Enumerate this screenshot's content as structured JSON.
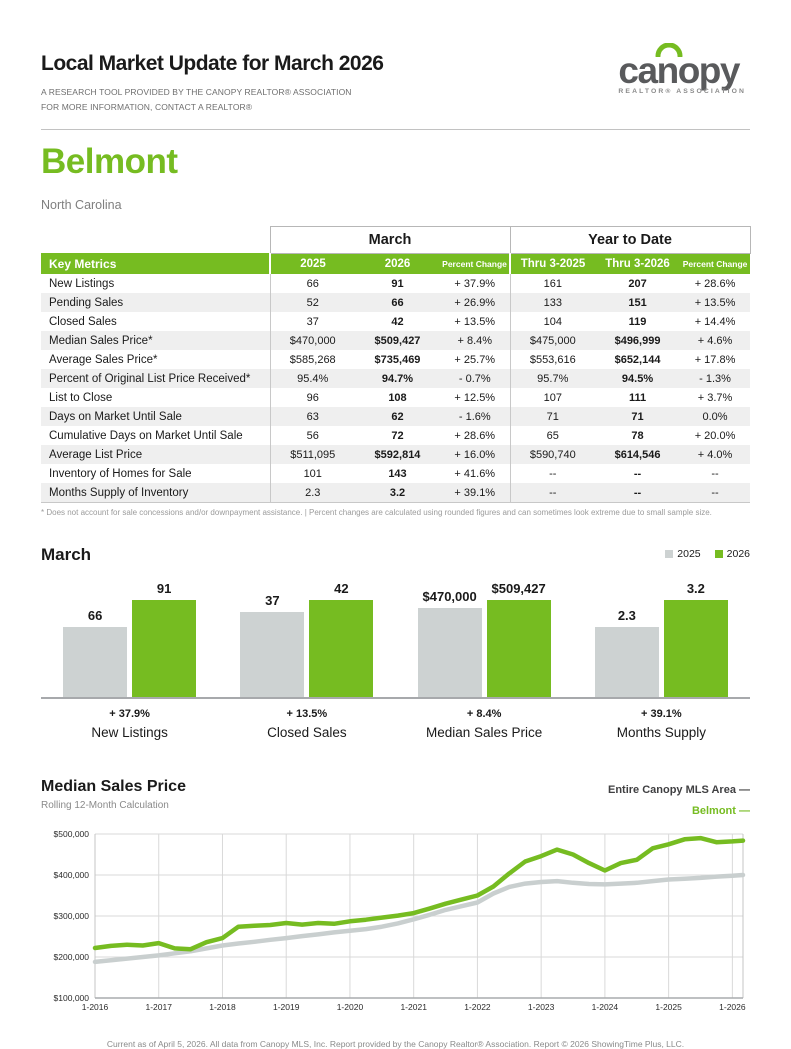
{
  "page": {
    "title": "Local Market Update for March 2026",
    "subtitle_line1": "A RESEARCH TOOL PROVIDED BY THE CANOPY REALTOR® ASSOCIATION",
    "subtitle_line2": "FOR MORE INFORMATION, CONTACT A REALTOR®",
    "area": "Belmont",
    "state": "North Carolina",
    "footer": "Current as of April 5, 2026. All data from Canopy MLS, Inc. Report provided by the Canopy Realtor® Association. Report © 2026 ShowingTime Plus, LLC."
  },
  "logo": {
    "word_left": "ca",
    "word_n": "n",
    "word_right": "opy",
    "subtext": "REALTOR® ASSOCIATION"
  },
  "colors": {
    "green": "#76bc21",
    "gray_bar": "#cdd2d2",
    "gray_line": "#c9cfcf",
    "legend_dark": "#404042"
  },
  "table": {
    "group_headers": [
      "March",
      "Year to Date"
    ],
    "columns": [
      "Key Metrics",
      "2025",
      "2026",
      "Percent Change",
      "Thru 3-2025",
      "Thru 3-2026",
      "Percent Change"
    ],
    "rows": [
      [
        "New Listings",
        "66",
        "91",
        "+ 37.9%",
        "161",
        "207",
        "+ 28.6%"
      ],
      [
        "Pending Sales",
        "52",
        "66",
        "+ 26.9%",
        "133",
        "151",
        "+ 13.5%"
      ],
      [
        "Closed Sales",
        "37",
        "42",
        "+ 13.5%",
        "104",
        "119",
        "+ 14.4%"
      ],
      [
        "Median Sales Price*",
        "$470,000",
        "$509,427",
        "+ 8.4%",
        "$475,000",
        "$496,999",
        "+ 4.6%"
      ],
      [
        "Average Sales Price*",
        "$585,268",
        "$735,469",
        "+ 25.7%",
        "$553,616",
        "$652,144",
        "+ 17.8%"
      ],
      [
        "Percent of Original List Price Received*",
        "95.4%",
        "94.7%",
        "- 0.7%",
        "95.7%",
        "94.5%",
        "- 1.3%"
      ],
      [
        "List to Close",
        "96",
        "108",
        "+ 12.5%",
        "107",
        "111",
        "+ 3.7%"
      ],
      [
        "Days on Market Until Sale",
        "63",
        "62",
        "- 1.6%",
        "71",
        "71",
        "0.0%"
      ],
      [
        "Cumulative Days on Market Until Sale",
        "56",
        "72",
        "+ 28.6%",
        "65",
        "78",
        "+ 20.0%"
      ],
      [
        "Average List Price",
        "$511,095",
        "$592,814",
        "+ 16.0%",
        "$590,740",
        "$614,546",
        "+ 4.0%"
      ],
      [
        "Inventory of Homes for Sale",
        "101",
        "143",
        "+ 41.6%",
        "--",
        "--",
        "--"
      ],
      [
        "Months Supply of Inventory",
        "2.3",
        "3.2",
        "+ 39.1%",
        "--",
        "--",
        "--"
      ]
    ],
    "footnote": "* Does not account for sale concessions and/or downpayment assistance.  |  Percent changes are calculated using rounded figures and can sometimes look extreme due to small sample size."
  },
  "chart_data": [
    {
      "type": "bar",
      "title": "March",
      "legend": [
        {
          "label": "2025",
          "color": "#cdd2d2"
        },
        {
          "label": "2026",
          "color": "#76bc21"
        }
      ],
      "groups": [
        {
          "label": "New Listings",
          "v2025": 66,
          "v2026": 91,
          "label2025": "66",
          "label2026": "91",
          "change": "+ 37.9%"
        },
        {
          "label": "Closed Sales",
          "v2025": 37,
          "v2026": 42,
          "label2025": "37",
          "label2026": "42",
          "change": "+ 13.5%"
        },
        {
          "label": "Median Sales Price",
          "v2025": 470000,
          "v2026": 509427,
          "label2025": "$470,000",
          "label2026": "$509,427",
          "change": "+ 8.4%"
        },
        {
          "label": "Months Supply",
          "v2025": 2.3,
          "v2026": 3.2,
          "label2025": "2.3",
          "label2026": "3.2",
          "change": "+ 39.1%"
        }
      ]
    },
    {
      "type": "line",
      "title": "Median Sales Price",
      "subtitle": "Rolling 12-Month Calculation",
      "legend": [
        {
          "name": "Entire Canopy MLS Area",
          "color": "#404042"
        },
        {
          "name": "Belmont",
          "color": "#76bc21"
        }
      ],
      "xlim_months": [
        0,
        122
      ],
      "x_ticks_months": [
        0,
        12,
        24,
        36,
        48,
        60,
        72,
        84,
        96,
        108,
        120
      ],
      "x_tick_labels": [
        "1-2016",
        "1-2017",
        "1-2018",
        "1-2019",
        "1-2020",
        "1-2021",
        "1-2022",
        "1-2023",
        "1-2024",
        "1-2025",
        "1-2026"
      ],
      "ylim": [
        100000,
        500000
      ],
      "y_ticks": [
        100000,
        200000,
        300000,
        400000,
        500000
      ],
      "y_tick_labels": [
        "$100,000",
        "$200,000",
        "$300,000",
        "$400,000",
        "$500,000"
      ],
      "x_months": [
        0,
        3,
        6,
        9,
        12,
        15,
        18,
        21,
        24,
        27,
        30,
        33,
        36,
        39,
        42,
        45,
        48,
        51,
        54,
        57,
        60,
        63,
        66,
        69,
        72,
        75,
        78,
        81,
        84,
        87,
        90,
        93,
        96,
        99,
        102,
        105,
        108,
        111,
        114,
        117,
        120,
        122
      ],
      "series": [
        {
          "name": "Entire Canopy MLS Area",
          "line_color": "#c9cfcf",
          "values": [
            188000,
            192000,
            196000,
            200000,
            204000,
            209000,
            214000,
            221000,
            228000,
            233000,
            237000,
            242000,
            246000,
            251000,
            255000,
            260000,
            264000,
            268000,
            274000,
            282000,
            292000,
            303000,
            315000,
            324000,
            333000,
            355000,
            371000,
            379000,
            383000,
            385000,
            381000,
            378000,
            377000,
            379000,
            381000,
            385000,
            389000,
            391000,
            393000,
            396000,
            398000,
            400000
          ]
        },
        {
          "name": "Belmont",
          "line_color": "#76bc21",
          "values": [
            222000,
            227000,
            230000,
            228000,
            234000,
            221000,
            219000,
            236000,
            246000,
            274000,
            276000,
            278000,
            283000,
            279000,
            283000,
            281000,
            287000,
            291000,
            296000,
            301000,
            307000,
            318000,
            330000,
            340000,
            350000,
            372000,
            404000,
            433000,
            446000,
            462000,
            450000,
            429000,
            411000,
            429000,
            437000,
            465000,
            475000,
            487000,
            490000,
            480000,
            482000,
            484000
          ]
        }
      ]
    }
  ]
}
